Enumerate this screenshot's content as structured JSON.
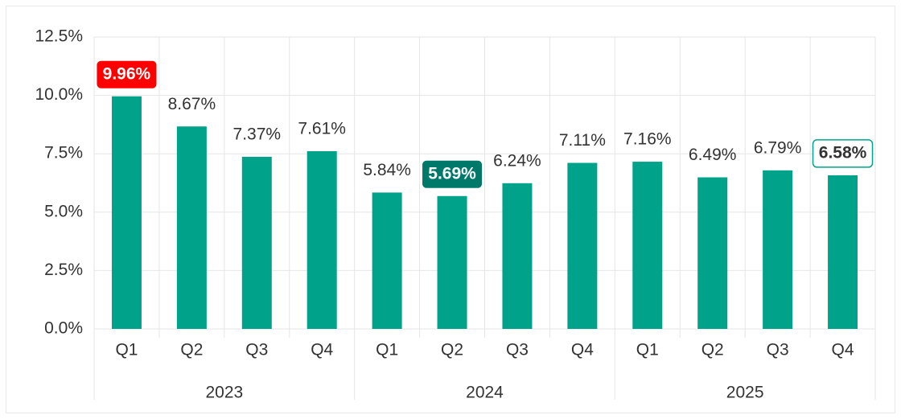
{
  "chart_data": {
    "type": "bar",
    "categories": [
      "Q1",
      "Q2",
      "Q3",
      "Q4",
      "Q1",
      "Q2",
      "Q3",
      "Q4",
      "Q1",
      "Q2",
      "Q3",
      "Q4"
    ],
    "groups": [
      "2023",
      "2024",
      "2025"
    ],
    "values": [
      9.96,
      8.67,
      7.37,
      7.61,
      5.84,
      5.69,
      6.24,
      7.11,
      7.16,
      6.49,
      6.79,
      6.58
    ],
    "value_labels": [
      "9.96%",
      "8.67%",
      "7.37%",
      "7.61%",
      "5.84%",
      "5.69%",
      "6.24%",
      "7.11%",
      "7.16%",
      "6.49%",
      "6.79%",
      "6.58%"
    ],
    "color": "#00a38a",
    "highlight_max_color": "#ff0000",
    "highlight_min_color": "#00796b",
    "highlight_last": true,
    "ylim": [
      0,
      12.5
    ],
    "yticks": [
      {
        "value": 0,
        "label": "0.0%"
      },
      {
        "value": 2.5,
        "label": "2.5%"
      },
      {
        "value": 5,
        "label": "5.0%"
      },
      {
        "value": 7.5,
        "label": "7.5%"
      },
      {
        "value": 10,
        "label": "10.0%"
      },
      {
        "value": 12.5,
        "label": "12.5%"
      }
    ],
    "grid": true
  }
}
